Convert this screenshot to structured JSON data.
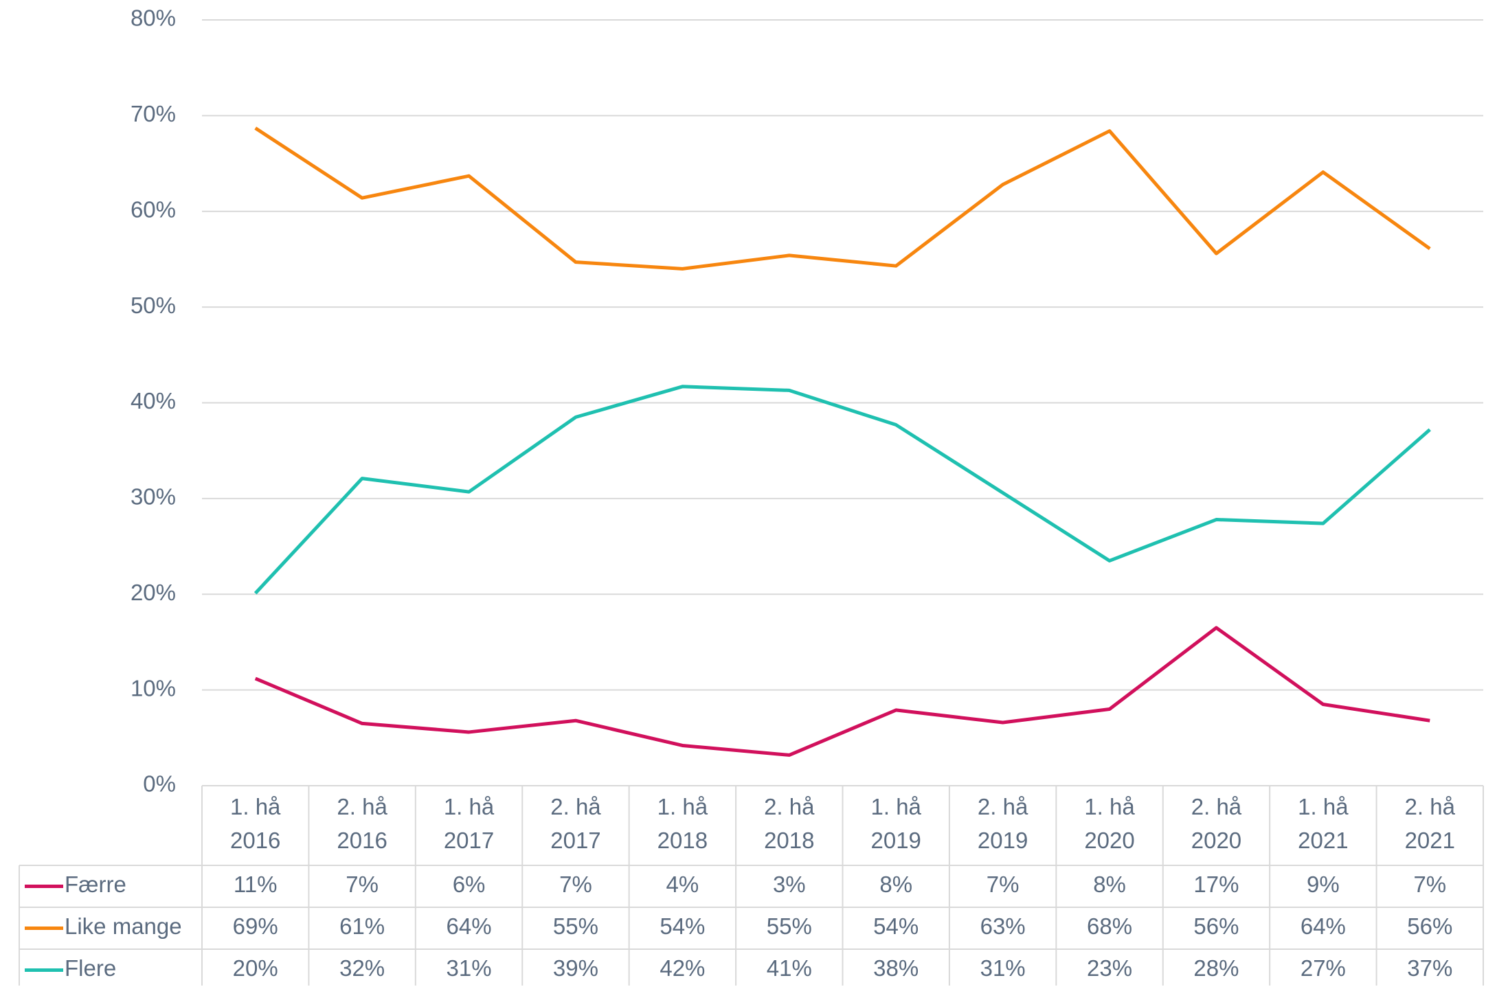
{
  "chart_data": {
    "type": "line",
    "categories": [
      "1. hå 2016",
      "2. hå 2016",
      "1. hå 2017",
      "2. hå 2017",
      "1. hå 2018",
      "2. hå 2018",
      "1. hå 2019",
      "2. hå 2019",
      "1. hå 2020",
      "2. hå 2020",
      "1. hå 2021",
      "2. hå 2021"
    ],
    "series": [
      {
        "name": "Færre",
        "color": "#d1105c",
        "values": [
          11.2,
          6.5,
          5.6,
          6.8,
          4.2,
          3.2,
          7.9,
          6.6,
          8.0,
          16.5,
          8.5,
          6.8
        ],
        "value_labels": [
          "11%",
          "7%",
          "6%",
          "7%",
          "4%",
          "3%",
          "8%",
          "7%",
          "8%",
          "17%",
          "9%",
          "7%"
        ]
      },
      {
        "name": "Like mange",
        "color": "#f7860f",
        "values": [
          68.7,
          61.4,
          63.7,
          54.7,
          54.0,
          55.4,
          54.3,
          62.8,
          68.4,
          55.6,
          64.1,
          56.1
        ],
        "value_labels": [
          "69%",
          "61%",
          "64%",
          "55%",
          "54%",
          "55%",
          "54%",
          "63%",
          "68%",
          "56%",
          "64%",
          "56%"
        ]
      },
      {
        "name": "Flere",
        "color": "#1fc0b0",
        "values": [
          20.1,
          32.1,
          30.7,
          38.5,
          41.7,
          41.3,
          37.7,
          30.6,
          23.5,
          27.8,
          27.4,
          37.2
        ],
        "value_labels": [
          "20%",
          "32%",
          "31%",
          "39%",
          "42%",
          "41%",
          "38%",
          "31%",
          "23%",
          "28%",
          "27%",
          "37%"
        ]
      }
    ],
    "ylim": [
      0,
      80
    ],
    "yticks": [
      {
        "value": 0,
        "label": "0%"
      },
      {
        "value": 10,
        "label": "10%"
      },
      {
        "value": 20,
        "label": "20%"
      },
      {
        "value": 30,
        "label": "30%"
      },
      {
        "value": 40,
        "label": "40%"
      },
      {
        "value": 50,
        "label": "50%"
      },
      {
        "value": 60,
        "label": "60%"
      },
      {
        "value": 70,
        "label": "70%"
      },
      {
        "value": 80,
        "label": "80%"
      }
    ],
    "grid": true
  }
}
